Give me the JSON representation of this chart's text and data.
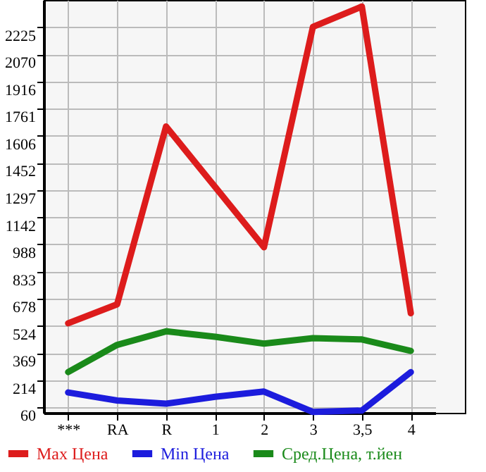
{
  "chart_data": {
    "type": "line",
    "categories": [
      "***",
      "RA",
      "R",
      "1",
      "2",
      "3",
      "3,5",
      "4"
    ],
    "series": [
      {
        "name": "Max Цена",
        "color": "#dd1c1c",
        "values": [
          539,
          647,
          1660,
          1316,
          972,
          2227,
          2343,
          596
        ]
      },
      {
        "name": "Min Цена",
        "color": "#1c1cdd",
        "values": [
          145,
          99,
          81,
          120,
          150,
          34,
          42,
          261
        ]
      },
      {
        "name": "Сред.Цена, т.йен",
        "color": "#1a8a1a",
        "values": [
          261,
          416,
          493,
          462,
          423,
          454,
          447,
          382
        ]
      }
    ],
    "ylim": [
      29,
      2380
    ],
    "yticks": [
      60,
      214,
      369,
      524,
      678,
      833,
      988,
      1142,
      1297,
      1452,
      1606,
      1761,
      1916,
      2070,
      2225
    ],
    "grid": true,
    "legend": "bottom",
    "marker": "none",
    "line_style": "solid"
  }
}
